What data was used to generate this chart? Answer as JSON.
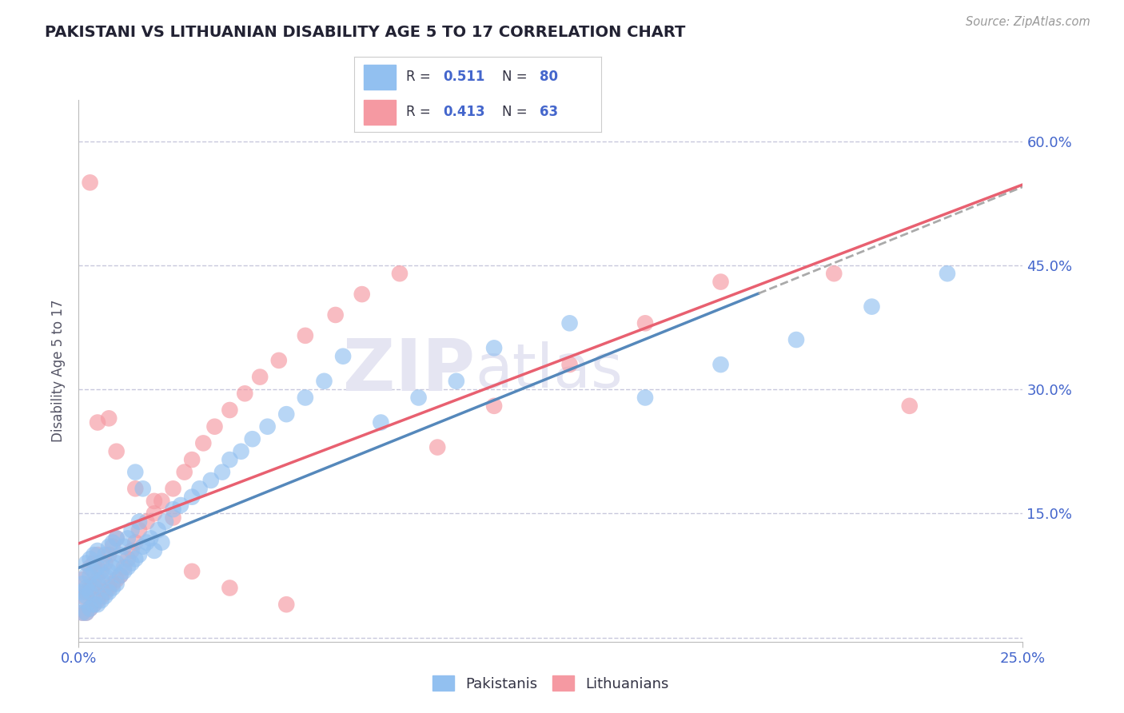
{
  "title": "PAKISTANI VS LITHUANIAN DISABILITY AGE 5 TO 17 CORRELATION CHART",
  "source_text": "Source: ZipAtlas.com",
  "xlim": [
    0.0,
    0.25
  ],
  "ylim": [
    -0.005,
    0.65
  ],
  "yticks": [
    0.0,
    0.15,
    0.3,
    0.45,
    0.6
  ],
  "ytick_labels": [
    "",
    "15.0%",
    "30.0%",
    "45.0%",
    "60.0%"
  ],
  "xtick_labels": [
    "0.0%",
    "25.0%"
  ],
  "blue_color": "#92C0F0",
  "pink_color": "#F599A2",
  "blue_line_color": "#5588BB",
  "pink_line_color": "#E86070",
  "blue_dash_color": "#AAAAAA",
  "grid_color": "#C8C8DC",
  "background_color": "#FFFFFF",
  "title_color": "#222233",
  "axis_tick_color": "#4466CC",
  "watermark_color": "#E5E5F2",
  "source_color": "#999999",
  "ylabel_text": "Disability Age 5 to 17",
  "r1_val": "0.511",
  "n1_val": "80",
  "r2_val": "0.413",
  "n2_val": "63",
  "pak_x": [
    0.001,
    0.001,
    0.001,
    0.001,
    0.002,
    0.002,
    0.002,
    0.002,
    0.002,
    0.003,
    0.003,
    0.003,
    0.003,
    0.004,
    0.004,
    0.004,
    0.004,
    0.005,
    0.005,
    0.005,
    0.005,
    0.006,
    0.006,
    0.006,
    0.007,
    0.007,
    0.007,
    0.008,
    0.008,
    0.008,
    0.009,
    0.009,
    0.009,
    0.01,
    0.01,
    0.01,
    0.011,
    0.011,
    0.012,
    0.012,
    0.013,
    0.013,
    0.014,
    0.014,
    0.015,
    0.015,
    0.016,
    0.016,
    0.017,
    0.017,
    0.018,
    0.019,
    0.02,
    0.021,
    0.022,
    0.023,
    0.025,
    0.027,
    0.03,
    0.032,
    0.035,
    0.038,
    0.04,
    0.043,
    0.046,
    0.05,
    0.055,
    0.06,
    0.065,
    0.07,
    0.08,
    0.09,
    0.1,
    0.11,
    0.13,
    0.15,
    0.17,
    0.19,
    0.21,
    0.23
  ],
  "pak_y": [
    0.03,
    0.045,
    0.055,
    0.065,
    0.03,
    0.05,
    0.06,
    0.075,
    0.09,
    0.035,
    0.055,
    0.075,
    0.095,
    0.04,
    0.06,
    0.08,
    0.1,
    0.04,
    0.065,
    0.085,
    0.105,
    0.045,
    0.07,
    0.09,
    0.05,
    0.075,
    0.1,
    0.055,
    0.08,
    0.11,
    0.06,
    0.085,
    0.115,
    0.065,
    0.09,
    0.12,
    0.075,
    0.1,
    0.08,
    0.11,
    0.085,
    0.12,
    0.09,
    0.13,
    0.095,
    0.2,
    0.1,
    0.14,
    0.11,
    0.18,
    0.115,
    0.12,
    0.105,
    0.13,
    0.115,
    0.14,
    0.155,
    0.16,
    0.17,
    0.18,
    0.19,
    0.2,
    0.215,
    0.225,
    0.24,
    0.255,
    0.27,
    0.29,
    0.31,
    0.34,
    0.26,
    0.29,
    0.31,
    0.35,
    0.38,
    0.29,
    0.33,
    0.36,
    0.4,
    0.44
  ],
  "lit_x": [
    0.001,
    0.001,
    0.001,
    0.002,
    0.002,
    0.003,
    0.003,
    0.003,
    0.004,
    0.004,
    0.004,
    0.005,
    0.005,
    0.005,
    0.006,
    0.006,
    0.007,
    0.007,
    0.008,
    0.008,
    0.009,
    0.009,
    0.01,
    0.01,
    0.011,
    0.012,
    0.013,
    0.014,
    0.015,
    0.016,
    0.018,
    0.02,
    0.022,
    0.025,
    0.028,
    0.03,
    0.033,
    0.036,
    0.04,
    0.044,
    0.048,
    0.053,
    0.06,
    0.068,
    0.075,
    0.085,
    0.095,
    0.11,
    0.13,
    0.15,
    0.17,
    0.2,
    0.22,
    0.003,
    0.005,
    0.008,
    0.01,
    0.015,
    0.02,
    0.025,
    0.03,
    0.04,
    0.055
  ],
  "lit_y": [
    0.03,
    0.05,
    0.07,
    0.03,
    0.055,
    0.035,
    0.06,
    0.085,
    0.04,
    0.065,
    0.09,
    0.045,
    0.07,
    0.1,
    0.05,
    0.08,
    0.055,
    0.09,
    0.06,
    0.1,
    0.065,
    0.11,
    0.07,
    0.12,
    0.075,
    0.085,
    0.095,
    0.105,
    0.115,
    0.13,
    0.14,
    0.15,
    0.165,
    0.18,
    0.2,
    0.215,
    0.235,
    0.255,
    0.275,
    0.295,
    0.315,
    0.335,
    0.365,
    0.39,
    0.415,
    0.44,
    0.23,
    0.28,
    0.33,
    0.38,
    0.43,
    0.44,
    0.28,
    0.55,
    0.26,
    0.265,
    0.225,
    0.18,
    0.165,
    0.145,
    0.08,
    0.06,
    0.04
  ]
}
